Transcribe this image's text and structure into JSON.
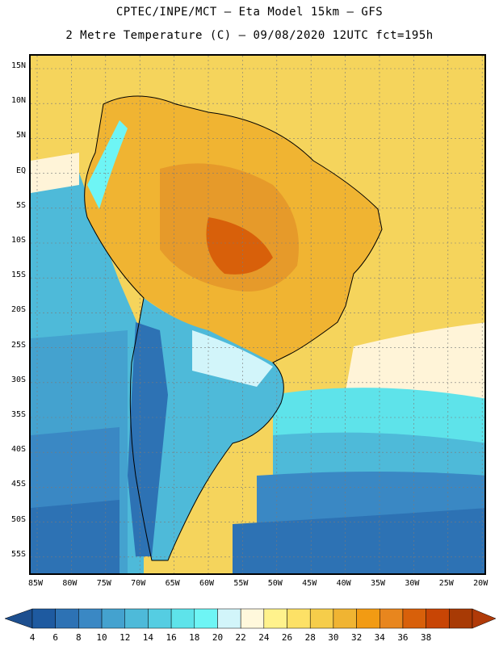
{
  "header": {
    "title_line1": "CPTEC/INPE/MCT –  Eta Model 15km – GFS",
    "title_line2": "2 Metre Temperature (C) – 09/08/2020 12UTC fct=195h"
  },
  "map": {
    "lat_labels": [
      "15N",
      "10N",
      "5N",
      "EQ",
      "5S",
      "10S",
      "15S",
      "20S",
      "25S",
      "30S",
      "35S",
      "40S",
      "45S",
      "50S",
      "55S"
    ],
    "lon_labels": [
      "85W",
      "80W",
      "75W",
      "70W",
      "65W",
      "60W",
      "55W",
      "50W",
      "45W",
      "40W",
      "35W",
      "30W",
      "25W",
      "20W"
    ],
    "ocean_color_warm": "#f5d45c",
    "land_color_hot": "#e69a2a"
  },
  "colorbar": {
    "labels": [
      "4",
      "6",
      "8",
      "10",
      "12",
      "14",
      "16",
      "18",
      "20",
      "22",
      "24",
      "26",
      "28",
      "30",
      "32",
      "34",
      "36",
      "38"
    ],
    "colors": [
      "#1e5aa0",
      "#2d72b4",
      "#3a88c4",
      "#44a2cf",
      "#4ebad9",
      "#55cde2",
      "#5ee3ea",
      "#6ef5f5",
      "#d2f5fa",
      "#fff8dc",
      "#fff28c",
      "#fde166",
      "#f6cd4a",
      "#f0b432",
      "#f29b13",
      "#e8861e",
      "#d8600a",
      "#c84505",
      "#a83a05"
    ],
    "underflow_color": "#1d4f8f",
    "overflow_color": "#b03a08"
  }
}
